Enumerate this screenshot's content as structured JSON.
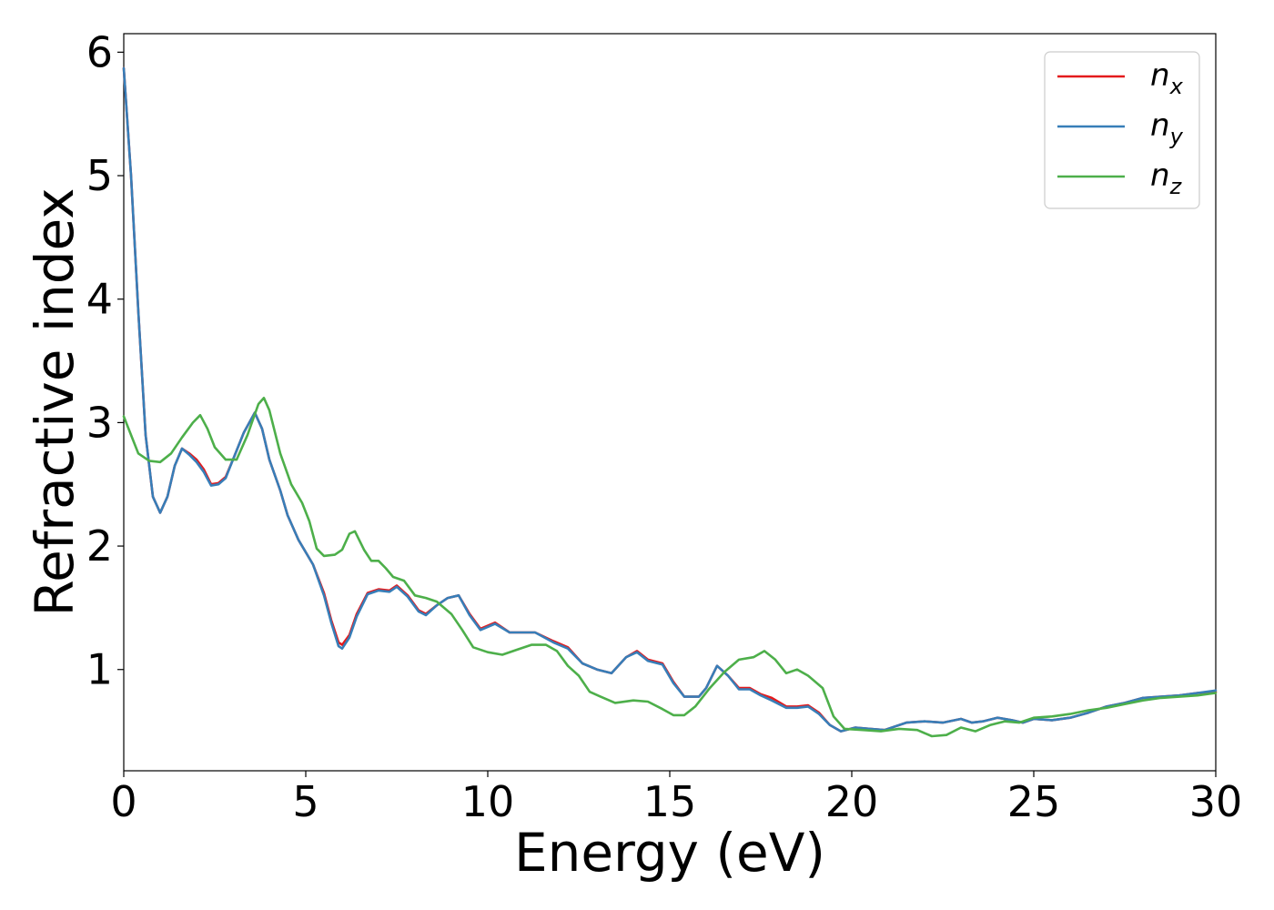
{
  "chart_data": {
    "type": "line",
    "xlabel": "Energy (eV)",
    "ylabel": "Refractive index",
    "xlim": [
      0,
      30
    ],
    "ylim": [
      0.18,
      6.15
    ],
    "xticks": [
      0,
      5,
      10,
      15,
      20,
      25,
      30
    ],
    "yticks": [
      1,
      2,
      3,
      4,
      5,
      6
    ],
    "grid": false,
    "legend_position": "top-right",
    "series": [
      {
        "name": "n",
        "subscript": "x",
        "color": "#e41a1c",
        "points": [
          [
            0,
            5.87
          ],
          [
            0.2,
            5.0
          ],
          [
            0.4,
            3.9
          ],
          [
            0.6,
            2.9
          ],
          [
            0.8,
            2.4
          ],
          [
            1.0,
            2.27
          ],
          [
            1.2,
            2.4
          ],
          [
            1.4,
            2.65
          ],
          [
            1.6,
            2.79
          ],
          [
            1.8,
            2.75
          ],
          [
            2.0,
            2.7
          ],
          [
            2.2,
            2.62
          ],
          [
            2.4,
            2.5
          ],
          [
            2.6,
            2.51
          ],
          [
            2.8,
            2.56
          ],
          [
            3.0,
            2.7
          ],
          [
            3.3,
            2.92
          ],
          [
            3.6,
            3.08
          ],
          [
            3.8,
            2.95
          ],
          [
            4.0,
            2.7
          ],
          [
            4.3,
            2.45
          ],
          [
            4.5,
            2.25
          ],
          [
            4.8,
            2.05
          ],
          [
            5.2,
            1.85
          ],
          [
            5.5,
            1.62
          ],
          [
            5.7,
            1.4
          ],
          [
            5.9,
            1.22
          ],
          [
            6.0,
            1.2
          ],
          [
            6.2,
            1.28
          ],
          [
            6.4,
            1.45
          ],
          [
            6.7,
            1.62
          ],
          [
            7.0,
            1.65
          ],
          [
            7.3,
            1.64
          ],
          [
            7.5,
            1.68
          ],
          [
            7.8,
            1.6
          ],
          [
            8.1,
            1.48
          ],
          [
            8.3,
            1.45
          ],
          [
            8.6,
            1.52
          ],
          [
            8.9,
            1.58
          ],
          [
            9.2,
            1.6
          ],
          [
            9.5,
            1.45
          ],
          [
            9.8,
            1.33
          ],
          [
            10.2,
            1.38
          ],
          [
            10.6,
            1.3
          ],
          [
            11.0,
            1.3
          ],
          [
            11.3,
            1.3
          ],
          [
            11.8,
            1.23
          ],
          [
            12.2,
            1.18
          ],
          [
            12.6,
            1.05
          ],
          [
            13.0,
            1.0
          ],
          [
            13.4,
            0.97
          ],
          [
            13.8,
            1.1
          ],
          [
            14.1,
            1.15
          ],
          [
            14.4,
            1.08
          ],
          [
            14.8,
            1.05
          ],
          [
            15.1,
            0.9
          ],
          [
            15.4,
            0.78
          ],
          [
            15.8,
            0.78
          ],
          [
            16.0,
            0.85
          ],
          [
            16.3,
            1.03
          ],
          [
            16.6,
            0.95
          ],
          [
            16.9,
            0.85
          ],
          [
            17.2,
            0.85
          ],
          [
            17.5,
            0.8
          ],
          [
            17.8,
            0.77
          ],
          [
            18.2,
            0.7
          ],
          [
            18.5,
            0.7
          ],
          [
            18.8,
            0.71
          ],
          [
            19.1,
            0.65
          ],
          [
            19.4,
            0.55
          ],
          [
            19.7,
            0.5
          ],
          [
            20.1,
            0.53
          ],
          [
            20.5,
            0.52
          ],
          [
            20.9,
            0.51
          ],
          [
            21.5,
            0.57
          ],
          [
            22.0,
            0.58
          ],
          [
            22.5,
            0.57
          ],
          [
            23.0,
            0.6
          ],
          [
            23.3,
            0.57
          ],
          [
            23.6,
            0.58
          ],
          [
            24.0,
            0.61
          ],
          [
            24.4,
            0.59
          ],
          [
            24.7,
            0.57
          ],
          [
            25.0,
            0.6
          ],
          [
            25.5,
            0.59
          ],
          [
            26.0,
            0.61
          ],
          [
            26.5,
            0.65
          ],
          [
            27.0,
            0.7
          ],
          [
            27.5,
            0.73
          ],
          [
            28.0,
            0.77
          ],
          [
            28.5,
            0.78
          ],
          [
            29.0,
            0.79
          ],
          [
            29.5,
            0.81
          ],
          [
            30.0,
            0.82
          ]
        ]
      },
      {
        "name": "n",
        "subscript": "y",
        "color": "#377eb8",
        "points": [
          [
            0,
            5.87
          ],
          [
            0.2,
            5.0
          ],
          [
            0.4,
            3.9
          ],
          [
            0.6,
            2.9
          ],
          [
            0.8,
            2.4
          ],
          [
            1.0,
            2.27
          ],
          [
            1.2,
            2.4
          ],
          [
            1.4,
            2.65
          ],
          [
            1.6,
            2.79
          ],
          [
            1.8,
            2.74
          ],
          [
            2.0,
            2.68
          ],
          [
            2.2,
            2.6
          ],
          [
            2.4,
            2.49
          ],
          [
            2.6,
            2.5
          ],
          [
            2.8,
            2.55
          ],
          [
            3.0,
            2.7
          ],
          [
            3.3,
            2.92
          ],
          [
            3.6,
            3.08
          ],
          [
            3.8,
            2.95
          ],
          [
            4.0,
            2.7
          ],
          [
            4.3,
            2.45
          ],
          [
            4.5,
            2.25
          ],
          [
            4.8,
            2.05
          ],
          [
            5.2,
            1.85
          ],
          [
            5.5,
            1.6
          ],
          [
            5.7,
            1.38
          ],
          [
            5.9,
            1.19
          ],
          [
            6.0,
            1.17
          ],
          [
            6.2,
            1.26
          ],
          [
            6.4,
            1.43
          ],
          [
            6.7,
            1.61
          ],
          [
            7.0,
            1.64
          ],
          [
            7.3,
            1.63
          ],
          [
            7.5,
            1.67
          ],
          [
            7.8,
            1.59
          ],
          [
            8.1,
            1.47
          ],
          [
            8.3,
            1.44
          ],
          [
            8.6,
            1.52
          ],
          [
            8.9,
            1.58
          ],
          [
            9.2,
            1.6
          ],
          [
            9.5,
            1.44
          ],
          [
            9.8,
            1.32
          ],
          [
            10.2,
            1.37
          ],
          [
            10.6,
            1.3
          ],
          [
            11.0,
            1.3
          ],
          [
            11.3,
            1.3
          ],
          [
            11.8,
            1.22
          ],
          [
            12.2,
            1.17
          ],
          [
            12.6,
            1.05
          ],
          [
            13.0,
            1.0
          ],
          [
            13.4,
            0.97
          ],
          [
            13.8,
            1.1
          ],
          [
            14.1,
            1.14
          ],
          [
            14.4,
            1.07
          ],
          [
            14.8,
            1.04
          ],
          [
            15.1,
            0.89
          ],
          [
            15.4,
            0.78
          ],
          [
            15.8,
            0.78
          ],
          [
            16.0,
            0.85
          ],
          [
            16.3,
            1.03
          ],
          [
            16.6,
            0.95
          ],
          [
            16.9,
            0.84
          ],
          [
            17.2,
            0.84
          ],
          [
            17.5,
            0.79
          ],
          [
            17.8,
            0.75
          ],
          [
            18.2,
            0.69
          ],
          [
            18.5,
            0.69
          ],
          [
            18.8,
            0.7
          ],
          [
            19.1,
            0.64
          ],
          [
            19.4,
            0.55
          ],
          [
            19.7,
            0.5
          ],
          [
            20.1,
            0.53
          ],
          [
            20.5,
            0.52
          ],
          [
            20.9,
            0.51
          ],
          [
            21.5,
            0.57
          ],
          [
            22.0,
            0.58
          ],
          [
            22.5,
            0.57
          ],
          [
            23.0,
            0.6
          ],
          [
            23.3,
            0.57
          ],
          [
            23.6,
            0.58
          ],
          [
            24.0,
            0.61
          ],
          [
            24.4,
            0.59
          ],
          [
            24.7,
            0.57
          ],
          [
            25.0,
            0.6
          ],
          [
            25.5,
            0.59
          ],
          [
            26.0,
            0.61
          ],
          [
            26.5,
            0.65
          ],
          [
            27.0,
            0.7
          ],
          [
            27.5,
            0.73
          ],
          [
            28.0,
            0.77
          ],
          [
            28.5,
            0.78
          ],
          [
            29.0,
            0.79
          ],
          [
            29.5,
            0.81
          ],
          [
            30.0,
            0.83
          ]
        ]
      },
      {
        "name": "n",
        "subscript": "z",
        "color": "#4daf4a",
        "points": [
          [
            0,
            3.05
          ],
          [
            0.2,
            2.9
          ],
          [
            0.4,
            2.75
          ],
          [
            0.7,
            2.69
          ],
          [
            1.0,
            2.68
          ],
          [
            1.3,
            2.75
          ],
          [
            1.6,
            2.88
          ],
          [
            1.9,
            3.0
          ],
          [
            2.1,
            3.06
          ],
          [
            2.3,
            2.95
          ],
          [
            2.5,
            2.8
          ],
          [
            2.8,
            2.7
          ],
          [
            3.1,
            2.7
          ],
          [
            3.4,
            2.9
          ],
          [
            3.7,
            3.15
          ],
          [
            3.85,
            3.2
          ],
          [
            4.0,
            3.1
          ],
          [
            4.3,
            2.75
          ],
          [
            4.6,
            2.5
          ],
          [
            4.9,
            2.35
          ],
          [
            5.1,
            2.2
          ],
          [
            5.3,
            1.98
          ],
          [
            5.5,
            1.92
          ],
          [
            5.8,
            1.93
          ],
          [
            6.0,
            1.97
          ],
          [
            6.2,
            2.1
          ],
          [
            6.35,
            2.12
          ],
          [
            6.6,
            1.97
          ],
          [
            6.8,
            1.88
          ],
          [
            7.0,
            1.88
          ],
          [
            7.2,
            1.82
          ],
          [
            7.4,
            1.75
          ],
          [
            7.7,
            1.72
          ],
          [
            8.0,
            1.6
          ],
          [
            8.3,
            1.58
          ],
          [
            8.6,
            1.55
          ],
          [
            9.0,
            1.45
          ],
          [
            9.3,
            1.32
          ],
          [
            9.6,
            1.18
          ],
          [
            10.0,
            1.14
          ],
          [
            10.4,
            1.12
          ],
          [
            10.8,
            1.16
          ],
          [
            11.2,
            1.2
          ],
          [
            11.6,
            1.2
          ],
          [
            11.9,
            1.15
          ],
          [
            12.2,
            1.03
          ],
          [
            12.5,
            0.95
          ],
          [
            12.8,
            0.82
          ],
          [
            13.1,
            0.78
          ],
          [
            13.5,
            0.73
          ],
          [
            14.0,
            0.75
          ],
          [
            14.4,
            0.74
          ],
          [
            14.8,
            0.68
          ],
          [
            15.1,
            0.63
          ],
          [
            15.4,
            0.63
          ],
          [
            15.7,
            0.7
          ],
          [
            16.1,
            0.85
          ],
          [
            16.5,
            0.98
          ],
          [
            16.9,
            1.08
          ],
          [
            17.3,
            1.1
          ],
          [
            17.6,
            1.15
          ],
          [
            17.9,
            1.08
          ],
          [
            18.2,
            0.97
          ],
          [
            18.5,
            1.0
          ],
          [
            18.8,
            0.95
          ],
          [
            19.2,
            0.85
          ],
          [
            19.5,
            0.62
          ],
          [
            19.8,
            0.52
          ],
          [
            20.3,
            0.51
          ],
          [
            20.8,
            0.5
          ],
          [
            21.3,
            0.52
          ],
          [
            21.8,
            0.51
          ],
          [
            22.2,
            0.46
          ],
          [
            22.6,
            0.47
          ],
          [
            23.0,
            0.53
          ],
          [
            23.4,
            0.5
          ],
          [
            23.8,
            0.55
          ],
          [
            24.2,
            0.58
          ],
          [
            24.6,
            0.57
          ],
          [
            25.0,
            0.61
          ],
          [
            25.5,
            0.62
          ],
          [
            26.0,
            0.64
          ],
          [
            26.5,
            0.67
          ],
          [
            27.0,
            0.69
          ],
          [
            27.5,
            0.72
          ],
          [
            28.0,
            0.75
          ],
          [
            28.5,
            0.77
          ],
          [
            29.0,
            0.78
          ],
          [
            29.5,
            0.79
          ],
          [
            30.0,
            0.81
          ]
        ]
      }
    ]
  }
}
